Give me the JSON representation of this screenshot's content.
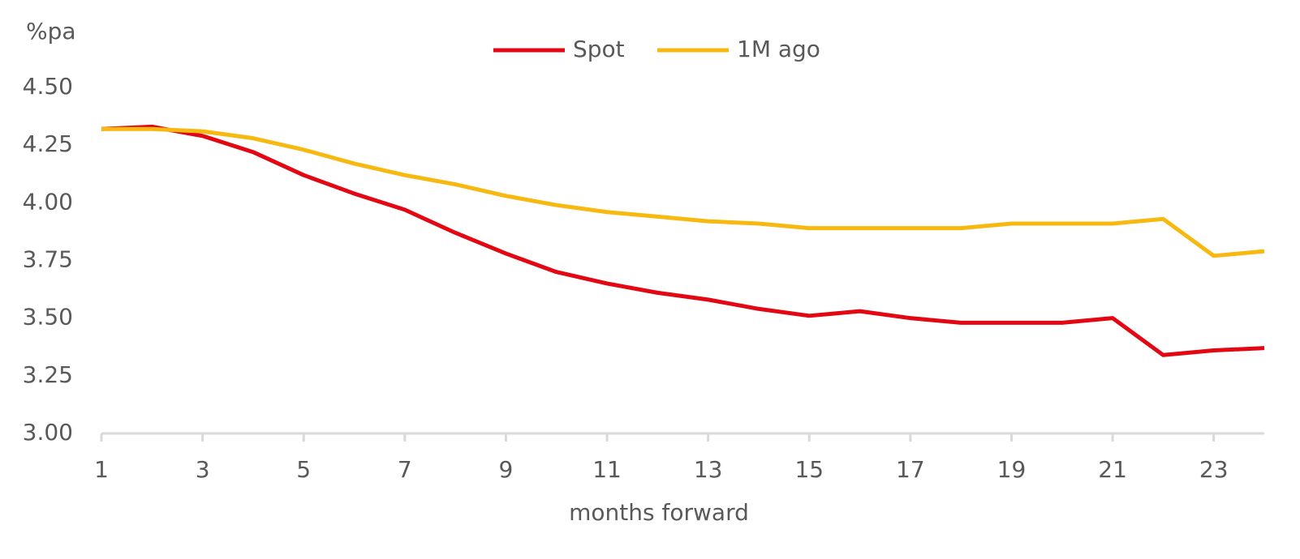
{
  "chart_data": {
    "type": "line",
    "y_label": "%pa",
    "x_label": "months forward",
    "x": [
      1,
      2,
      3,
      4,
      5,
      6,
      7,
      8,
      9,
      10,
      11,
      12,
      13,
      14,
      15,
      16,
      17,
      18,
      19,
      20,
      21,
      22,
      23,
      24
    ],
    "xlim": [
      1,
      24
    ],
    "xticks": [
      1,
      3,
      5,
      7,
      9,
      11,
      13,
      15,
      17,
      19,
      21,
      23
    ],
    "ylim": [
      3,
      4.5
    ],
    "yticks": [
      {
        "value": 3,
        "label": "3.00"
      },
      {
        "value": 3.25,
        "label": "3.25"
      },
      {
        "value": 3.5,
        "label": "3.50"
      },
      {
        "value": 3.75,
        "label": "3.75"
      },
      {
        "value": 4,
        "label": "4.00"
      },
      {
        "value": 4.25,
        "label": "4.25"
      },
      {
        "value": 4.5,
        "label": "4.50"
      }
    ],
    "grid": false,
    "legend": "top",
    "series": [
      {
        "name": "Spot",
        "color": "#e30613",
        "values": [
          4.32,
          4.33,
          4.29,
          4.22,
          4.12,
          4.04,
          3.97,
          3.87,
          3.78,
          3.7,
          3.65,
          3.61,
          3.58,
          3.54,
          3.51,
          3.53,
          3.5,
          3.48,
          3.48,
          3.48,
          3.5,
          3.34,
          3.36,
          3.37
        ]
      },
      {
        "name": "1M ago",
        "color": "#f7b90f",
        "values": [
          4.32,
          4.32,
          4.31,
          4.28,
          4.23,
          4.17,
          4.12,
          4.08,
          4.03,
          3.99,
          3.96,
          3.94,
          3.92,
          3.91,
          3.89,
          3.89,
          3.89,
          3.89,
          3.91,
          3.91,
          3.91,
          3.93,
          3.77,
          3.79
        ]
      }
    ]
  }
}
